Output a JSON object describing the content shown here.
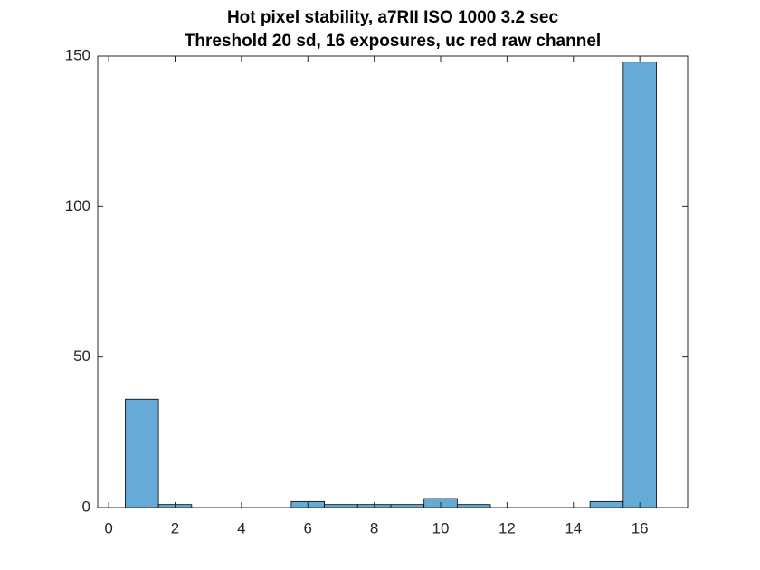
{
  "chart_data": {
    "type": "histogram",
    "title": [
      "Hot pixel stability, a7RII ISO 1000 3.2 sec",
      "Threshold 20 sd, 16 exposures, uc red raw channel"
    ],
    "bins": [
      0.5,
      1.5,
      2.5,
      3.5,
      4.5,
      5.5,
      6.5,
      7.5,
      8.5,
      9.5,
      10.5,
      11.5,
      12.5,
      13.5,
      14.5,
      15.5,
      16.5
    ],
    "counts": [
      36,
      1,
      0,
      0,
      0,
      2,
      1,
      1,
      1,
      3,
      1,
      0,
      0,
      0,
      2,
      148
    ],
    "color": "#66aad7",
    "xlim": [
      -0.33,
      17.44
    ],
    "xticks": [
      0,
      2,
      4,
      6,
      8,
      10,
      12,
      14,
      16
    ],
    "ylim": [
      0,
      150
    ],
    "yticks": [
      0,
      50,
      100,
      150
    ],
    "grid": false
  }
}
